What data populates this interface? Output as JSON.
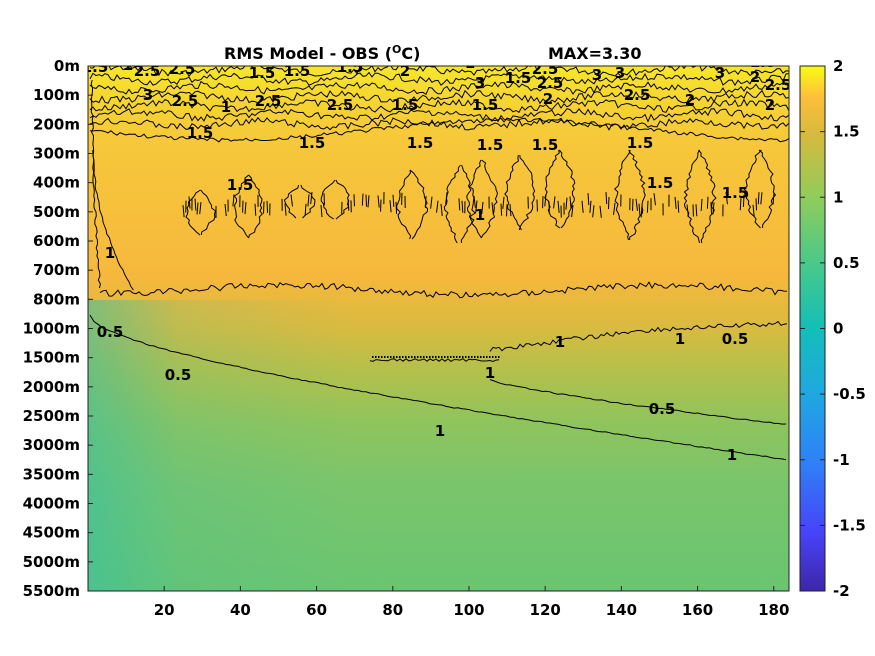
{
  "chart_data": {
    "type": "heatmap",
    "title": "RMS Model - OBS (",
    "title_unit_sup": "O",
    "title_unit_tail": "C)",
    "max_label": "MAX=3.30",
    "xlabel": "",
    "ylabel": "",
    "xlim": [
      0,
      184
    ],
    "x_ticks": [
      20,
      40,
      60,
      80,
      100,
      120,
      140,
      160,
      180
    ],
    "y_ticks": [
      "0m",
      "100m",
      "200m",
      "300m",
      "400m",
      "500m",
      "600m",
      "700m",
      "800m",
      "1000m",
      "1500m",
      "2000m",
      "2500m",
      "3000m",
      "3500m",
      "4000m",
      "4500m",
      "5000m",
      "5500m"
    ],
    "colorbar": {
      "limits": [
        -2,
        2
      ],
      "ticks": [
        "2",
        "1.5",
        "1",
        "0.5",
        "0",
        "-0.5",
        "-1",
        "-1.5",
        "-2"
      ],
      "colormap": [
        "#3e26a8",
        "#4743f8",
        "#2e83f7",
        "#1fa9df",
        "#13beb8",
        "#47c98b",
        "#90cc5b",
        "#d7ba3c",
        "#fcbf3b",
        "#f9fb15"
      ]
    },
    "depth_profile_mean_value": [
      2.1,
      2.3,
      2.2,
      1.6,
      1.45,
      1.4,
      1.35,
      1.3,
      1.2,
      0.95,
      0.85,
      0.7,
      0.55,
      0.5,
      0.48,
      0.47,
      0.46,
      0.45,
      0.45
    ],
    "contour_levels": [
      "0.5",
      "1",
      "1.5",
      "2",
      "2.5",
      "3"
    ],
    "contour_labels": [
      "1.5",
      "1",
      "2.5",
      "2.5",
      "1.5",
      "2",
      "1.5",
      "1.5",
      "2",
      "1",
      "3",
      "1.5",
      "2.5",
      "2.5",
      "3",
      "3",
      "2.5",
      "1",
      "3",
      "1.5",
      "2",
      "2.5",
      "3",
      "2.5",
      "2.5",
      "2.5",
      "1.5",
      "1.5",
      "2",
      "2",
      "2",
      "1.5",
      "1.5",
      "1.5",
      "1.5",
      "1.5",
      "1.5",
      "1.5",
      "1.5",
      "1.5",
      "1",
      "1",
      "1",
      "1",
      "1",
      "0.5",
      "0.5",
      "0.5",
      "0.5",
      "1",
      "1",
      "1"
    ]
  }
}
